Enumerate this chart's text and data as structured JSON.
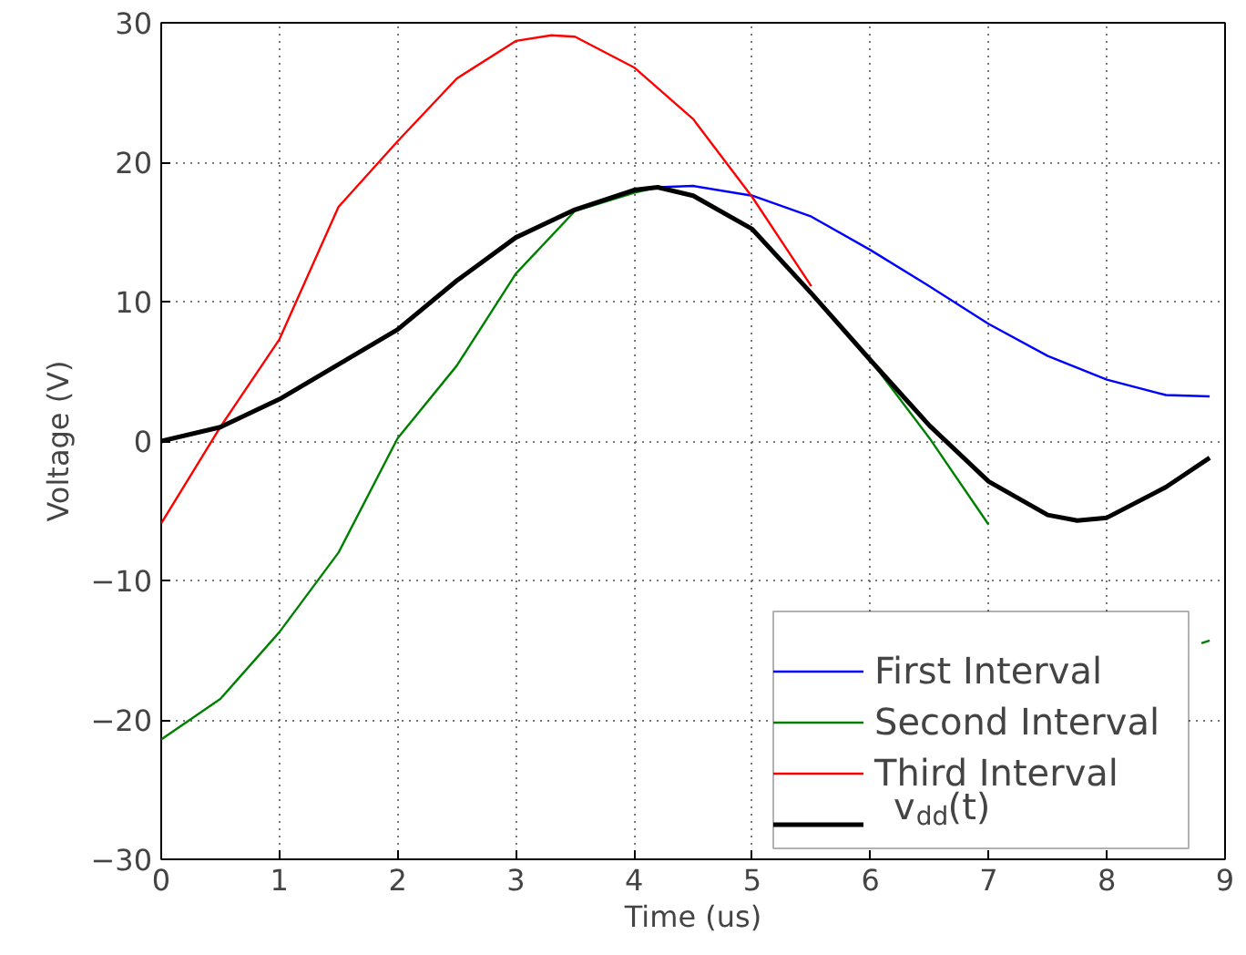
{
  "chart_data": {
    "type": "line",
    "xlabel": "Time (us)",
    "ylabel": "Voltage (V)",
    "xlim": [
      0,
      9
    ],
    "ylim": [
      -30,
      30
    ],
    "xticks": [
      0,
      1,
      2,
      3,
      4,
      5,
      6,
      7,
      8,
      9
    ],
    "yticks": [
      -30,
      -20,
      -10,
      0,
      10,
      20,
      30
    ],
    "grid": true,
    "legend": "bottom right",
    "line_style": "solid",
    "marker": "none",
    "series": [
      {
        "name": "First Interval",
        "color": "#0000ff",
        "x": [
          4.2,
          4.5,
          5,
          5.5,
          6,
          6.5,
          7,
          7.5,
          8,
          8.5,
          8.87
        ],
        "values": [
          18.2,
          18.3,
          17.6,
          16.1,
          13.7,
          11.1,
          8.4,
          6.1,
          4.4,
          3.3,
          3.2
        ]
      },
      {
        "name": "Second Interval",
        "color": "#008000",
        "x": [
          0,
          0.5,
          1,
          1.5,
          2,
          2.5,
          3,
          3.5,
          4,
          4.2,
          4.5,
          5,
          5.5,
          6,
          6.5,
          7,
          7.07,
          8.8,
          8.87
        ],
        "values": [
          -21.4,
          -18.5,
          -13.7,
          -8,
          0.2,
          5.4,
          12,
          16.5,
          17.8,
          18.2,
          17.6,
          15.2,
          10.6,
          5.8,
          0.2,
          -6,
          null,
          -14.5,
          -14.3
        ]
      },
      {
        "name": "Third Interval",
        "color": "#ff0000",
        "x": [
          0,
          0.5,
          1,
          1.5,
          2,
          2.5,
          3,
          3.3,
          3.5,
          4,
          4.5,
          5,
          5.5
        ],
        "values": [
          -5.9,
          1,
          7.3,
          16.8,
          21.5,
          26,
          28.7,
          29.1,
          29,
          26.8,
          23.1,
          17.5,
          11.1
        ]
      },
      {
        "name": "v$_{dd}$(t)",
        "color": "#000000",
        "x": [
          0,
          0.5,
          1,
          1.5,
          2,
          2.5,
          3,
          3.5,
          4,
          4.2,
          4.5,
          5,
          5.5,
          6,
          6.5,
          7,
          7.5,
          7.75,
          8,
          8.5,
          8.87
        ],
        "values": [
          0,
          1,
          3,
          5.5,
          8,
          11.5,
          14.6,
          16.6,
          18,
          18.2,
          17.6,
          15.2,
          10.6,
          5.8,
          1.1,
          -2.9,
          -5.3,
          -5.7,
          -5.5,
          -3.3,
          -1.2
        ]
      }
    ]
  }
}
